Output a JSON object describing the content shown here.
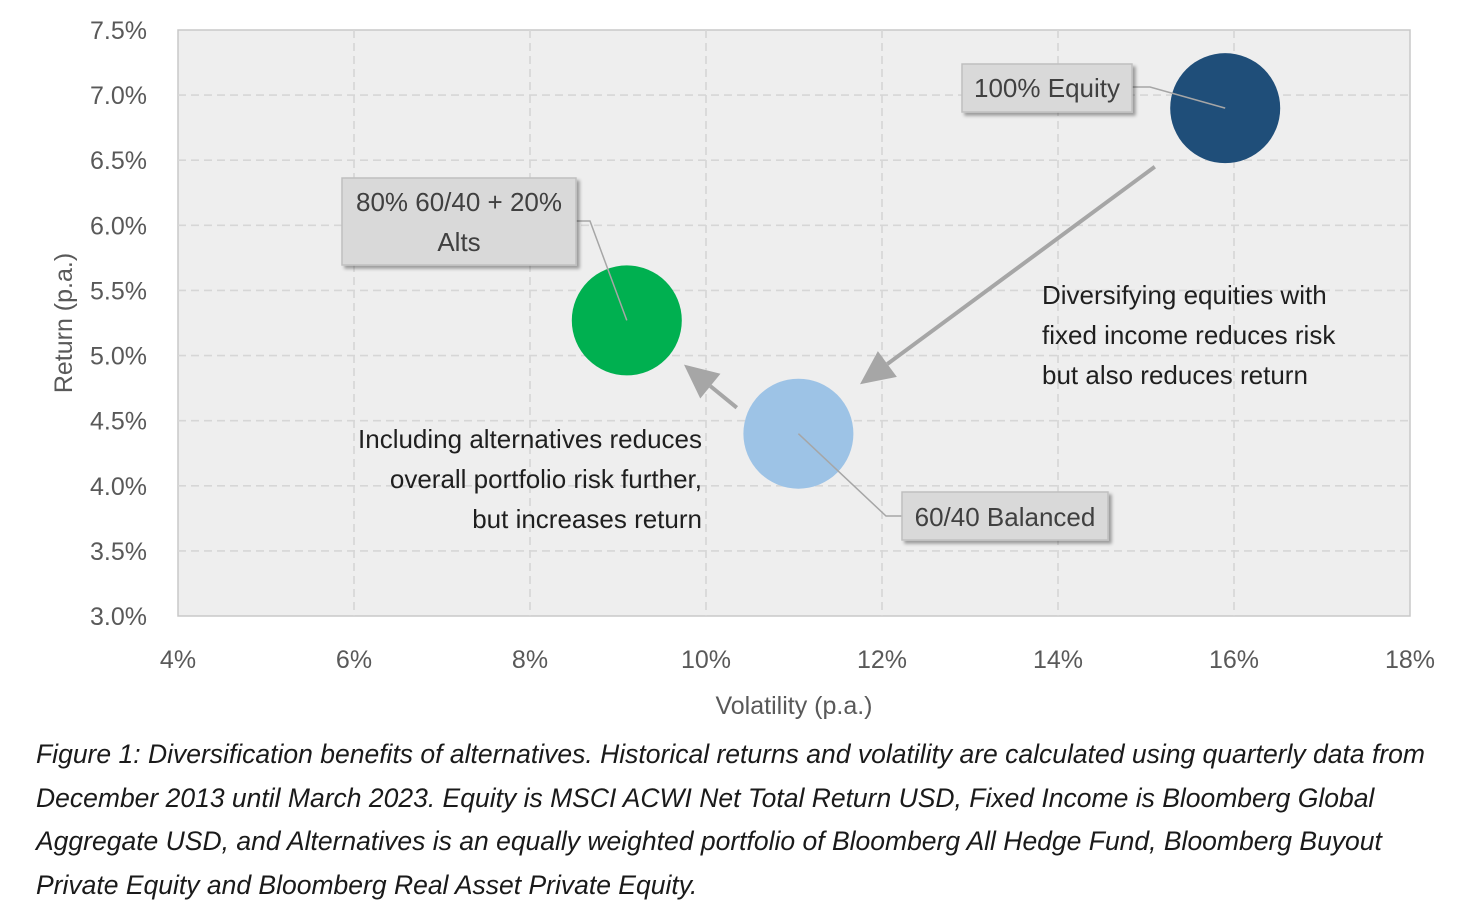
{
  "chart_data": {
    "type": "scatter",
    "xlabel": "Volatility (p.a.)",
    "ylabel": "Return (p.a.)",
    "xlim": [
      4,
      18
    ],
    "ylim": [
      3.0,
      7.5
    ],
    "x_ticks": [
      "4%",
      "6%",
      "8%",
      "10%",
      "12%",
      "14%",
      "16%",
      "18%"
    ],
    "y_ticks": [
      "3.0%",
      "3.5%",
      "4.0%",
      "4.5%",
      "5.0%",
      "5.5%",
      "6.0%",
      "6.5%",
      "7.0%",
      "7.5%"
    ],
    "grid": true,
    "points": [
      {
        "label_lines": [
          "100% Equity"
        ],
        "x": 15.9,
        "y": 6.9,
        "color": "#1f4e79"
      },
      {
        "label_lines": [
          "60/40 Balanced"
        ],
        "x": 11.05,
        "y": 4.4,
        "color": "#9dc3e6"
      },
      {
        "label_lines": [
          "80% 60/40 + 20%",
          "Alts"
        ],
        "x": 9.1,
        "y": 5.27,
        "color": "#00b050"
      }
    ],
    "annotations": [
      {
        "lines": [
          "Diversifying equities with",
          "fixed income reduces risk",
          "but also reduces return"
        ],
        "align": "left"
      },
      {
        "lines": [
          "Including alternatives reduces",
          "overall portfolio risk further,",
          "but increases return"
        ],
        "align": "right"
      }
    ],
    "arrows": [
      {
        "from": [
          15.1,
          6.45
        ],
        "to": [
          11.75,
          4.78
        ]
      },
      {
        "from": [
          10.35,
          4.6
        ],
        "to": [
          9.75,
          4.93
        ]
      }
    ]
  },
  "caption": "Figure 1: Diversification benefits of alternatives. Historical returns and volatility are calculated using quarterly data from December 2013 until March 2023. Equity is MSCI ACWI Net Total Return USD, Fixed Income is Bloomberg Global Aggregate USD, and Alternatives is an equally weighted portfolio of Bloomberg All Hedge Fund, Bloomberg Buyout Private Equity and Bloomberg Real Asset Private Equity."
}
